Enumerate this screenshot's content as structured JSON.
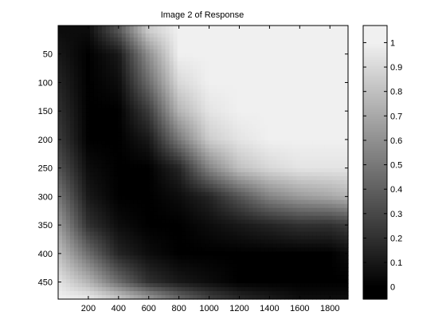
{
  "chart_data": {
    "type": "heatmap",
    "title": "Image 2 of Response",
    "xlabel": "",
    "ylabel": "",
    "x_ticks": [
      200,
      400,
      600,
      800,
      1000,
      1200,
      1400,
      1600,
      1800
    ],
    "y_ticks": [
      50,
      100,
      150,
      200,
      250,
      300,
      350,
      400,
      450
    ],
    "xlim": [
      0,
      1920
    ],
    "ylim": [
      0,
      480
    ],
    "y_axis_direction": "top-to-bottom",
    "colormap": "gray",
    "colorbar": {
      "ticks": [
        0,
        0.1,
        0.2,
        0.3,
        0.4,
        0.5,
        0.6,
        0.7,
        0.8,
        0.9,
        1
      ],
      "tick_labels": [
        "0",
        "0.1",
        "0.2",
        "0.3",
        "0.4",
        "0.5",
        "0.6",
        "0.7",
        "0.8",
        "0.9",
        "1"
      ],
      "range": [
        -0.05,
        1.07
      ],
      "placement": "right"
    },
    "field": {
      "description_of_pattern": "dark curved band (value ~0) running from top-left downward and then along bottom; bright (~1) upper-right and bottom-left corners",
      "sample_rows_y": [
        10,
        50,
        100,
        150,
        200,
        250,
        300,
        350,
        400,
        450,
        475
      ],
      "sample_cols_x": [
        0,
        200,
        400,
        600,
        800,
        1000,
        1200,
        1400,
        1600,
        1800,
        1920
      ],
      "values": [
        [
          0.05,
          0.05,
          0.35,
          0.85,
          1.0,
          1.0,
          1.0,
          1.0,
          1.0,
          1.0,
          1.0
        ],
        [
          0.1,
          0.0,
          0.1,
          0.6,
          1.0,
          1.0,
          1.0,
          1.0,
          1.0,
          1.0,
          1.0
        ],
        [
          0.15,
          0.0,
          0.05,
          0.45,
          0.9,
          1.0,
          1.0,
          1.0,
          1.0,
          1.0,
          1.0
        ],
        [
          0.2,
          0.0,
          0.0,
          0.25,
          0.75,
          0.95,
          1.0,
          1.0,
          1.0,
          1.0,
          1.0
        ],
        [
          0.25,
          0.0,
          0.0,
          0.1,
          0.5,
          0.85,
          0.95,
          1.0,
          1.0,
          1.0,
          1.0
        ],
        [
          0.35,
          0.05,
          0.0,
          0.0,
          0.15,
          0.55,
          0.8,
          0.9,
          0.95,
          0.95,
          0.95
        ],
        [
          0.5,
          0.1,
          0.0,
          0.0,
          0.05,
          0.15,
          0.35,
          0.55,
          0.65,
          0.7,
          0.75
        ],
        [
          0.65,
          0.2,
          0.05,
          0.0,
          0.0,
          0.05,
          0.1,
          0.15,
          0.2,
          0.2,
          0.25
        ],
        [
          0.8,
          0.45,
          0.15,
          0.05,
          0.0,
          0.0,
          0.0,
          0.0,
          0.0,
          0.0,
          0.05
        ],
        [
          0.95,
          0.75,
          0.45,
          0.2,
          0.1,
          0.05,
          0.0,
          0.0,
          0.0,
          0.0,
          0.0
        ],
        [
          1.0,
          0.95,
          0.8,
          0.6,
          0.4,
          0.25,
          0.15,
          0.1,
          0.05,
          0.05,
          0.05
        ]
      ]
    }
  }
}
